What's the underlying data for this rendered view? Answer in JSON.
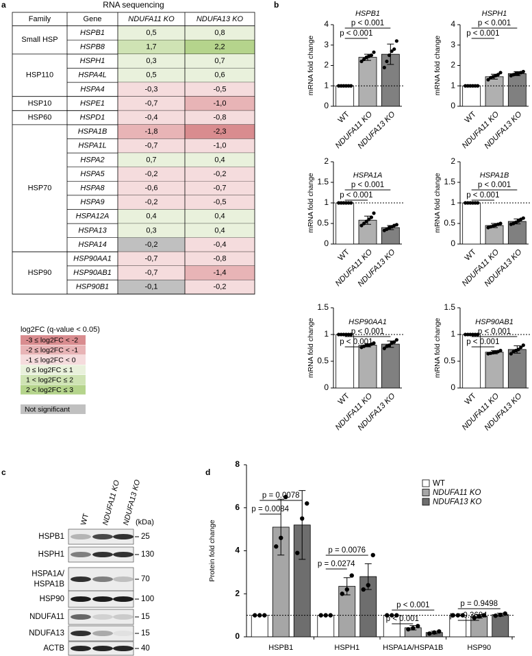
{
  "panel_labels": [
    "a",
    "b",
    "c",
    "d"
  ],
  "table": {
    "title": "RNA sequencing",
    "columns": [
      "Family",
      "Gene",
      "NDUFA11 KO",
      "NDUFA13 KO"
    ],
    "groups": [
      {
        "family": "Small HSP",
        "genes": [
          {
            "gene": "HSPB1",
            "values": [
              "0,5",
              "0,8"
            ],
            "colors": [
              "#e9f1dc",
              "#e9f1dc"
            ]
          },
          {
            "gene": "HSPB8",
            "values": [
              "1,7",
              "2,2"
            ],
            "colors": [
              "#cfe3b4",
              "#b5d48c"
            ]
          }
        ]
      },
      {
        "family": "HSP110",
        "genes": [
          {
            "gene": "HSPH1",
            "values": [
              "0,3",
              "0,7"
            ],
            "colors": [
              "#e9f1dc",
              "#e9f1dc"
            ]
          },
          {
            "gene": "HSPA4L",
            "values": [
              "0,5",
              "0,6"
            ],
            "colors": [
              "#e9f1dc",
              "#e9f1dc"
            ]
          },
          {
            "gene": "HSPA4",
            "values": [
              "-0,3",
              "-0,5"
            ],
            "colors": [
              "#f5dcdd",
              "#f5dcdd"
            ]
          }
        ]
      },
      {
        "family": "HSP10",
        "genes": [
          {
            "gene": "HSPE1",
            "values": [
              "-0,7",
              "-1,0"
            ],
            "colors": [
              "#f5dcdd",
              "#e8b4b6"
            ]
          }
        ]
      },
      {
        "family": "HSP60",
        "genes": [
          {
            "gene": "HSPD1",
            "values": [
              "-0,4",
              "-0,8"
            ],
            "colors": [
              "#f5dcdd",
              "#f5dcdd"
            ]
          }
        ]
      },
      {
        "family": "HSP70",
        "genes": [
          {
            "gene": "HSPA1B",
            "values": [
              "-1,8",
              "-2,3"
            ],
            "colors": [
              "#e8b4b6",
              "#d98c8f"
            ]
          },
          {
            "gene": "HSPA1L",
            "values": [
              "-0,7",
              "-1,0"
            ],
            "colors": [
              "#f5dcdd",
              "#f5dcdd"
            ]
          },
          {
            "gene": "HSPA2",
            "values": [
              "0,7",
              "0,4"
            ],
            "colors": [
              "#e9f1dc",
              "#e9f1dc"
            ]
          },
          {
            "gene": "HSPA5",
            "values": [
              "-0,2",
              "-0,2"
            ],
            "colors": [
              "#f5dcdd",
              "#f5dcdd"
            ]
          },
          {
            "gene": "HSPA8",
            "values": [
              "-0,6",
              "-0,7"
            ],
            "colors": [
              "#f5dcdd",
              "#f5dcdd"
            ]
          },
          {
            "gene": "HSPA9",
            "values": [
              "-0,2",
              "-0,5"
            ],
            "colors": [
              "#f5dcdd",
              "#f5dcdd"
            ]
          },
          {
            "gene": "HSPA12A",
            "values": [
              "0,4",
              "0,4"
            ],
            "colors": [
              "#e9f1dc",
              "#e9f1dc"
            ]
          },
          {
            "gene": "HSPA13",
            "values": [
              "0,3",
              "0,4"
            ],
            "colors": [
              "#e9f1dc",
              "#e9f1dc"
            ]
          },
          {
            "gene": "HSPA14",
            "values": [
              "-0,2",
              "-0,4"
            ],
            "colors": [
              "#c0c0c0",
              "#f5dcdd"
            ]
          }
        ]
      },
      {
        "family": "HSP90",
        "genes": [
          {
            "gene": "HSP90AA1",
            "values": [
              "-0,7",
              "-0,8"
            ],
            "colors": [
              "#f5dcdd",
              "#f5dcdd"
            ]
          },
          {
            "gene": "HSP90AB1",
            "values": [
              "-0,7",
              "-1,4"
            ],
            "colors": [
              "#f5dcdd",
              "#e8b4b6"
            ]
          },
          {
            "gene": "HSP90B1",
            "values": [
              "-0,1",
              "-0,2"
            ],
            "colors": [
              "#c0c0c0",
              "#f5dcdd"
            ]
          }
        ]
      }
    ]
  },
  "legend": {
    "title": "log2FC (q-value < 0.05)",
    "items": [
      {
        "label": "-3 ≤ log2FC < -2",
        "color": "#d98c8f"
      },
      {
        "label": "-2 ≤ log2FC < -1",
        "color": "#e8b4b6"
      },
      {
        "label": "-1 ≤ log2FC < 0",
        "color": "#f5dcdd"
      },
      {
        "label": "0 ≤ log2FC ≤ 1",
        "color": "#e9f1dc"
      },
      {
        "label": "1 < log2FC ≤ 2",
        "color": "#cfe3b4"
      },
      {
        "label": "2 < log2FC ≤ 3",
        "color": "#b5d48c"
      },
      {
        "label": "Not significant",
        "color": "#c0c0c0"
      }
    ]
  },
  "chart_data": [
    {
      "type": "bar",
      "title": "HSPB1",
      "ylabel": "mRNA fold change",
      "categories": [
        "WT",
        "NDUFA11 KO",
        "NDUFA13 KO"
      ],
      "values": [
        1,
        2.4,
        2.55
      ],
      "errors": [
        0,
        0.15,
        0.5
      ],
      "colors": [
        "#ffffff",
        "#b0b0b0",
        "#808080"
      ],
      "points": [
        [
          1,
          1,
          1,
          1,
          1,
          1
        ],
        [
          2.2,
          2.3,
          2.4,
          2.45,
          2.5,
          2.65
        ],
        [
          1.9,
          2.2,
          2.5,
          2.7,
          2.8,
          3.2
        ]
      ],
      "ylim": [
        0,
        4
      ],
      "yticks": [
        0,
        1,
        2,
        3,
        4
      ],
      "refline": 1,
      "p_labels": [
        "p < 0.001",
        "p < 0.001"
      ]
    },
    {
      "type": "bar",
      "title": "HSPH1",
      "ylabel": "mRNA fold change",
      "categories": [
        "WT",
        "NDUFA11 KO",
        "NDUFA13 KO"
      ],
      "values": [
        1,
        1.45,
        1.6
      ],
      "errors": [
        0,
        0.12,
        0.1
      ],
      "colors": [
        "#ffffff",
        "#b0b0b0",
        "#808080"
      ],
      "points": [
        [
          1,
          1,
          1,
          1,
          1,
          1
        ],
        [
          1.3,
          1.4,
          1.45,
          1.5,
          1.55,
          1.65
        ],
        [
          1.5,
          1.55,
          1.6,
          1.6,
          1.65,
          1.7
        ]
      ],
      "ylim": [
        0,
        4
      ],
      "yticks": [
        0,
        1,
        2,
        3,
        4
      ],
      "refline": 1,
      "p_labels": [
        "p < 0.001",
        "p < 0.001"
      ]
    },
    {
      "type": "bar",
      "title": "HSPA1A",
      "ylabel": "mRNA fold change",
      "categories": [
        "WT",
        "NDUFA11 KO",
        "NDUFA13 KO"
      ],
      "values": [
        1,
        0.58,
        0.4
      ],
      "errors": [
        0,
        0.1,
        0.05
      ],
      "colors": [
        "#ffffff",
        "#b0b0b0",
        "#808080"
      ],
      "points": [
        [
          1,
          1,
          1,
          1,
          1,
          1
        ],
        [
          0.45,
          0.5,
          0.55,
          0.6,
          0.65,
          0.75
        ],
        [
          0.33,
          0.36,
          0.4,
          0.42,
          0.45,
          0.47
        ]
      ],
      "ylim": [
        0,
        2
      ],
      "yticks": [
        0,
        0.5,
        1,
        1.5,
        2
      ],
      "refline": 1,
      "p_labels": [
        "p < 0.001",
        "p < 0.001"
      ]
    },
    {
      "type": "bar",
      "title": "HSPA1B",
      "ylabel": "mRNA fold change",
      "categories": [
        "WT",
        "NDUFA11 KO",
        "NDUFA13 KO"
      ],
      "values": [
        1,
        0.45,
        0.55
      ],
      "errors": [
        0,
        0.05,
        0.06
      ],
      "colors": [
        "#ffffff",
        "#b0b0b0",
        "#808080"
      ],
      "points": [
        [
          1,
          1,
          1,
          1,
          1,
          1
        ],
        [
          0.4,
          0.42,
          0.44,
          0.46,
          0.48,
          0.5
        ],
        [
          0.48,
          0.5,
          0.53,
          0.56,
          0.6,
          0.63
        ]
      ],
      "ylim": [
        0,
        2
      ],
      "yticks": [
        0,
        0.5,
        1,
        1.5,
        2
      ],
      "refline": 1,
      "p_labels": [
        "p < 0.001",
        "p < 0.001"
      ]
    },
    {
      "type": "bar",
      "title": "HSP90AA1",
      "ylabel": "mRNA fold change",
      "categories": [
        "WT",
        "NDUFA11 KO",
        "NDUFA13 KO"
      ],
      "values": [
        1,
        0.8,
        0.82
      ],
      "errors": [
        0,
        0.03,
        0.06
      ],
      "colors": [
        "#ffffff",
        "#b0b0b0",
        "#808080"
      ],
      "points": [
        [
          1,
          1,
          1,
          1,
          1,
          1
        ],
        [
          0.76,
          0.78,
          0.8,
          0.8,
          0.82,
          0.84
        ],
        [
          0.74,
          0.78,
          0.8,
          0.84,
          0.86,
          0.9
        ]
      ],
      "ylim": [
        0,
        1.5
      ],
      "yticks": [
        0,
        0.5,
        1,
        1.5
      ],
      "refline": 1,
      "p_labels": [
        "p < 0.001",
        "p < 0.001"
      ]
    },
    {
      "type": "bar",
      "title": "HSP90AB1",
      "ylabel": "mRNA fold change",
      "categories": [
        "WT",
        "NDUFA11 KO",
        "NDUFA13 KO"
      ],
      "values": [
        1,
        0.67,
        0.72
      ],
      "errors": [
        0,
        0.03,
        0.07
      ],
      "colors": [
        "#ffffff",
        "#b0b0b0",
        "#808080"
      ],
      "points": [
        [
          1,
          1,
          1,
          1,
          1,
          1
        ],
        [
          0.64,
          0.65,
          0.66,
          0.67,
          0.68,
          0.7
        ],
        [
          0.64,
          0.68,
          0.7,
          0.72,
          0.76,
          0.8
        ]
      ],
      "ylim": [
        0,
        1.5
      ],
      "yticks": [
        0,
        0.5,
        1,
        1.5
      ],
      "refline": 1,
      "p_labels": [
        "p < 0.001",
        "p < 0.001"
      ]
    },
    {
      "type": "grouped_bar",
      "ylabel": "Protein fold change",
      "categories": [
        "HSPB1",
        "HSPH1",
        "HSPA1A/HSPA1B",
        "HSP90"
      ],
      "series": [
        {
          "name": "WT",
          "color": "#ffffff",
          "values": [
            1,
            1,
            1,
            1
          ],
          "errors": [
            0,
            0,
            0,
            0
          ],
          "points": [
            [
              1,
              1,
              1
            ],
            [
              1,
              1,
              1
            ],
            [
              1,
              1,
              1
            ],
            [
              1,
              1,
              1
            ]
          ]
        },
        {
          "name": "NDUFA11 KO",
          "color": "#a6a6a6",
          "values": [
            5.1,
            2.35,
            0.42,
            0.95
          ],
          "errors": [
            1.3,
            0.4,
            0.1,
            0.08
          ],
          "points": [
            [
              4.2,
              4.6,
              6.5
            ],
            [
              2.0,
              2.2,
              2.85
            ],
            [
              0.35,
              0.4,
              0.5
            ],
            [
              0.88,
              0.95,
              1.0
            ]
          ]
        },
        {
          "name": "NDUFA13 KO",
          "color": "#6e6e6e",
          "values": [
            5.2,
            2.8,
            0.2,
            1.03
          ],
          "errors": [
            1.6,
            0.6,
            0.06,
            0.07
          ],
          "points": [
            [
              3.9,
              5.5,
              6.2
            ],
            [
              2.2,
              2.4,
              3.8
            ],
            [
              0.15,
              0.2,
              0.25
            ],
            [
              0.98,
              1.02,
              1.08
            ]
          ]
        }
      ],
      "ylim": [
        0,
        8
      ],
      "yticks": [
        0,
        2,
        4,
        6,
        8
      ],
      "refline": 1,
      "p_labels": [
        [
          "p = 0.0084",
          "p = 0.0078"
        ],
        [
          "p = 0.0274",
          "p = 0.0076"
        ],
        [
          "p < 0.001",
          "p < 0.001"
        ],
        [
          "p = 0.3684",
          "p = 0.9498"
        ]
      ]
    }
  ],
  "blot": {
    "lanes": [
      "WT",
      "NDUFA11 KO",
      "NDUFA13 KO"
    ],
    "unit": "(kDa)",
    "rows": [
      {
        "lines": [
          "HSPB1"
        ],
        "marker": 25
      },
      {
        "lines": [
          "HSPH1"
        ],
        "marker": 130
      },
      {
        "lines": [
          "HSPA1A/",
          "HSPA1B"
        ],
        "marker": 70
      },
      {
        "lines": [
          "HSP90"
        ],
        "marker": 100
      },
      {
        "lines": [
          "NDUFA11"
        ],
        "marker": 15
      },
      {
        "lines": [
          "NDUFA13"
        ],
        "marker": 15
      },
      {
        "lines": [
          "ACTB"
        ],
        "marker": 40
      }
    ]
  }
}
